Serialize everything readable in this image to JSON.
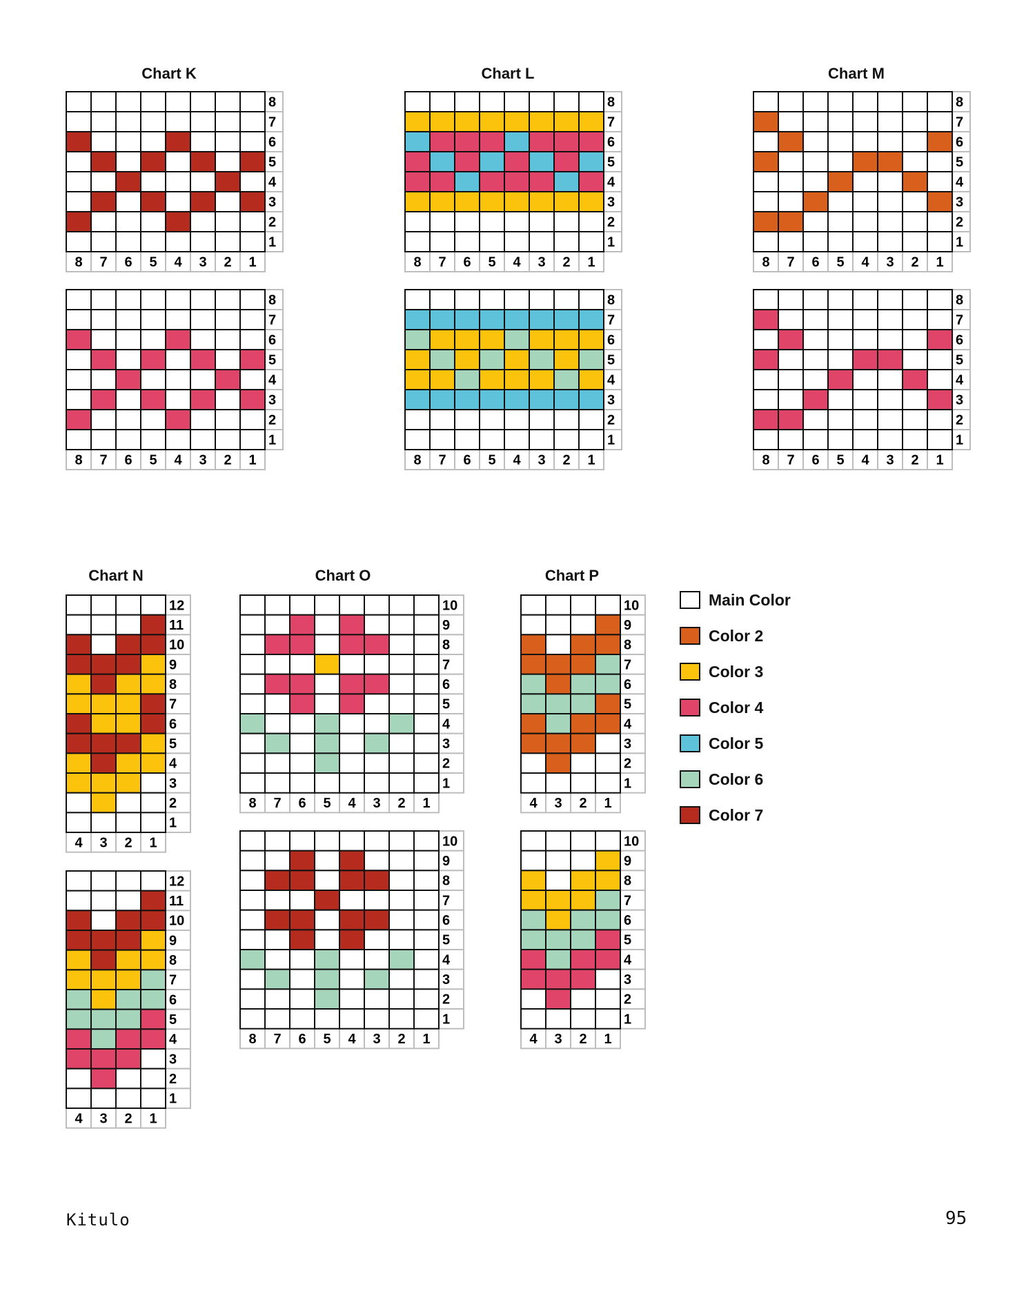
{
  "colors": {
    "W": "#ffffff",
    "O": "#d95f1c",
    "Y": "#fbc30c",
    "P": "#e04468",
    "B": "#5ec3da",
    "G": "#a5d6bc",
    "R": "#b52b1e"
  },
  "legend": [
    {
      "code": "W",
      "label": "Main Color"
    },
    {
      "code": "O",
      "label": "Color 2"
    },
    {
      "code": "Y",
      "label": "Color 3"
    },
    {
      "code": "P",
      "label": "Color 4"
    },
    {
      "code": "B",
      "label": "Color 5"
    },
    {
      "code": "G",
      "label": "Color 6"
    },
    {
      "code": "R",
      "label": "Color 7"
    }
  ],
  "charts": [
    {
      "title": "Chart K",
      "variants": [
        [
          "WWWWWWWW",
          "WWWWWWWW",
          "RWWWRWWW",
          "WRWRWRWR",
          "WWRWWWRW",
          "WRWRWRWR",
          "RWWWRWWW",
          "WWWWWWWW"
        ],
        [
          "WWWWWWWW",
          "WWWWWWWW",
          "PWWWPWWW",
          "WPWPWPWP",
          "WWPWWWPW",
          "WPWPWPWP",
          "PWWWPWWW",
          "WWWWWWWW"
        ]
      ]
    },
    {
      "title": "Chart L",
      "variants": [
        [
          "WWWWWWWW",
          "YYYYYYYY",
          "BPPPBPPP",
          "PBPBPBPB",
          "PPBPPPBP",
          "YYYYYYYY",
          "WWWWWWWW",
          "WWWWWWWW"
        ],
        [
          "WWWWWWWW",
          "BBBBBBBB",
          "GYYYGYYY",
          "YGYGYGYG",
          "YYGYYYGY",
          "BBBBBBBB",
          "WWWWWWWW",
          "WWWWWWWW"
        ]
      ]
    },
    {
      "title": "Chart M",
      "variants": [
        [
          "WWWWWWWW",
          "OWWWWWWW",
          "WOWWWWWO",
          "OWWWOOWW",
          "WWWOWWOW",
          "WWOWWWWO",
          "OOWWWWWW",
          "WWWWWWWW"
        ],
        [
          "WWWWWWWW",
          "PWWWWWWW",
          "WPWWWWWP",
          "PWWWPPWW",
          "WWWPWWPW",
          "WWPWWWWP",
          "PPWWWWWW",
          "WWWWWWWW"
        ]
      ]
    },
    {
      "title": "Chart N",
      "variants": [
        [
          "WWWW",
          "WWWR",
          "RWRR",
          "RRRY",
          "YRYY",
          "YYYR",
          "RYYR",
          "RRRY",
          "YRYY",
          "YYYW",
          "WYWW",
          "WWWW"
        ],
        [
          "WWWW",
          "WWWR",
          "RWRR",
          "RRRY",
          "YRYY",
          "YYYG",
          "GYGG",
          "GGGP",
          "PGPP",
          "PPPW",
          "WPWW",
          "WWWW"
        ]
      ]
    },
    {
      "title": "Chart O",
      "variants": [
        [
          "WWWWWWWW",
          "WWPWPWWW",
          "WPPWPPWW",
          "WWWYWWWW",
          "WPPWPPWW",
          "WWPWPWWW",
          "GWWGWWGW",
          "WGWGWGWW",
          "WWWGWWWW",
          "WWWWWWWW"
        ],
        [
          "WWWWWWWW",
          "WWRWRWWW",
          "WRRWRRWW",
          "WWWRWWWW",
          "WRRWRRWW",
          "WWRWRWWW",
          "GWWGWWGW",
          "WGWGWGWW",
          "WWWGWWWW",
          "WWWWWWWW"
        ]
      ]
    },
    {
      "title": "Chart P",
      "variants": [
        [
          "WWWW",
          "WWWO",
          "OWOO",
          "OOOG",
          "GOGG",
          "GGGO",
          "OGOO",
          "OOOW",
          "WOWW",
          "WWWW"
        ],
        [
          "WWWW",
          "WWWY",
          "YWYY",
          "YYYG",
          "GYGG",
          "GGGP",
          "PGPP",
          "PPPW",
          "WPWW",
          "WWWW"
        ]
      ]
    }
  ],
  "footer": {
    "left": "Kitulo",
    "right": "95"
  }
}
